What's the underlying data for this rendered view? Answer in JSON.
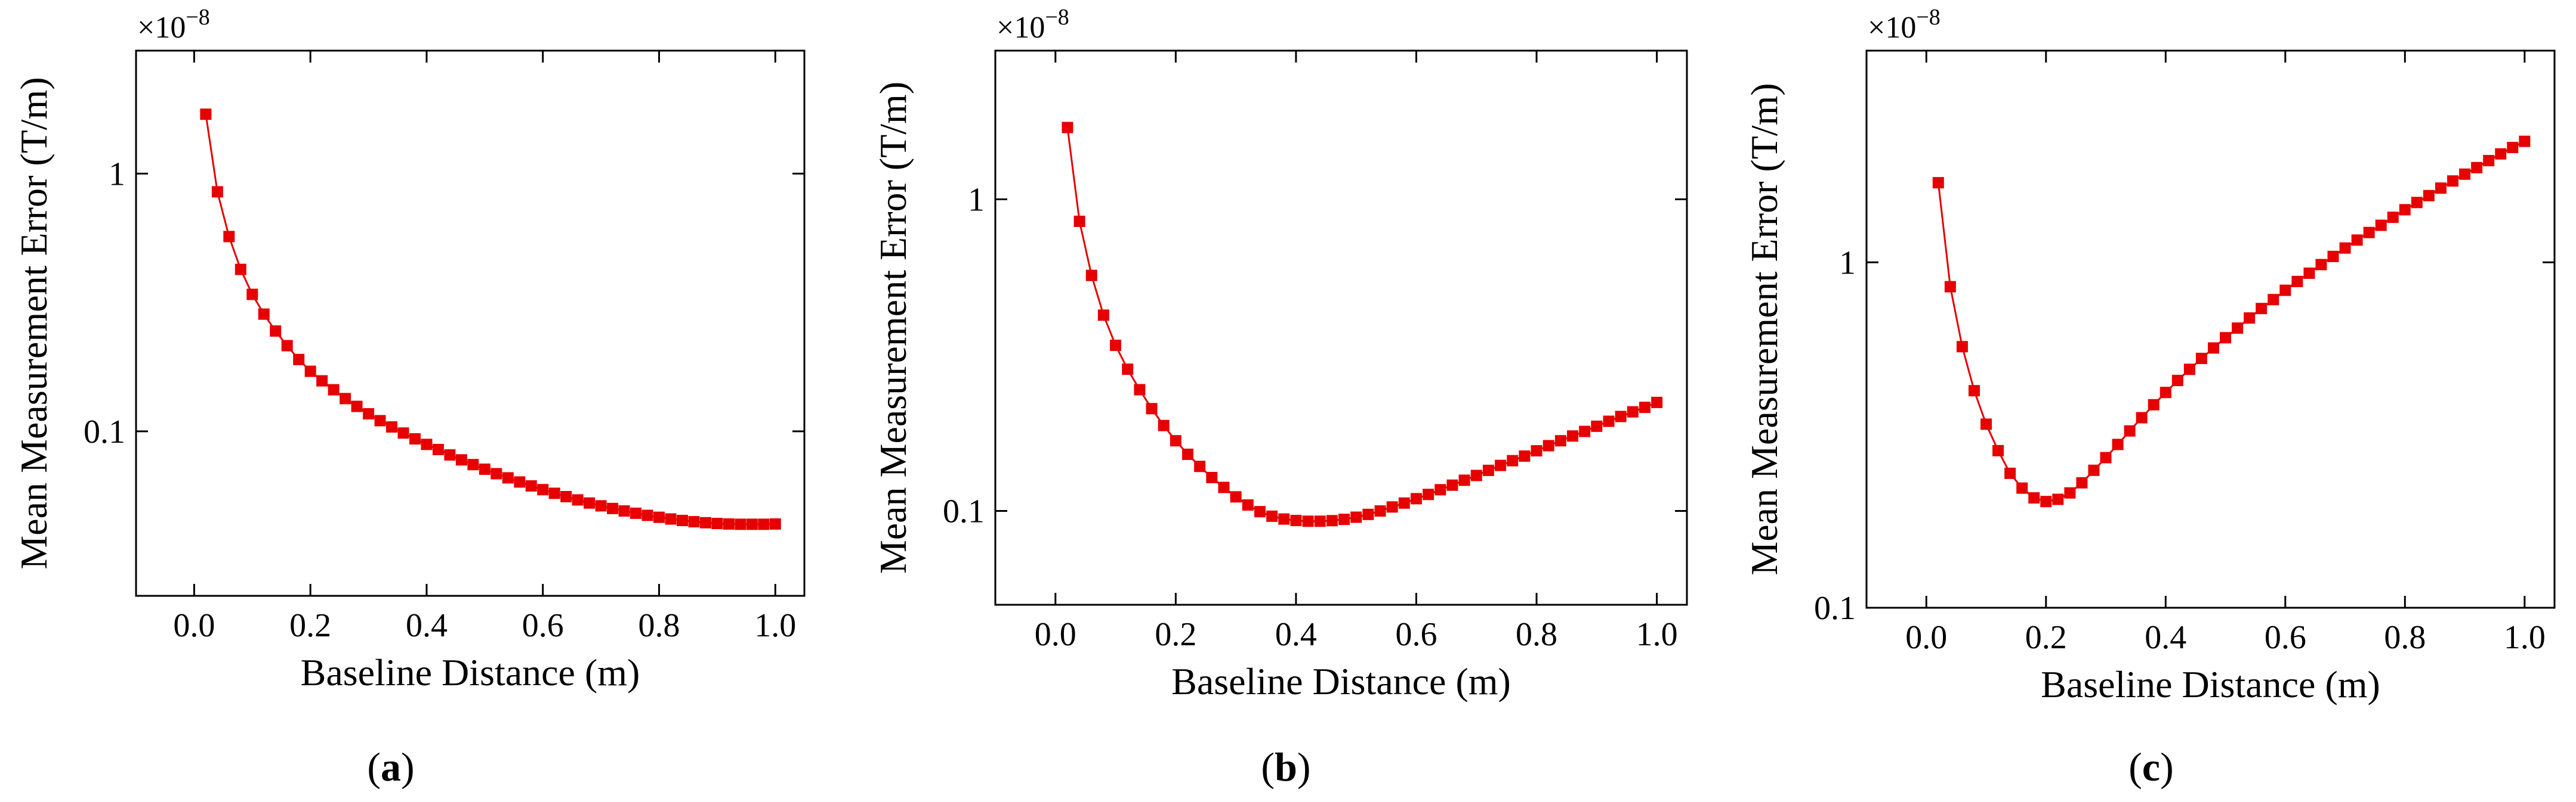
{
  "chart_data": [
    {
      "panel_label": "(a)",
      "type": "line",
      "xlabel": "Baseline Distance (m)",
      "ylabel": "Mean Measurement Error (T/m)",
      "y_multiplier": "×10",
      "y_multiplier_exp": "−8",
      "xlim": [
        -0.1,
        1.05
      ],
      "ylim": [
        0.023,
        3.0
      ],
      "yscale": "log",
      "xticks": [
        0.0,
        0.2,
        0.4,
        0.6,
        0.8,
        1.0
      ],
      "xtick_labels": [
        "0.0",
        "0.2",
        "0.4",
        "0.6",
        "0.8",
        "1.0"
      ],
      "yticks": [
        0.1,
        1
      ],
      "ytick_labels": [
        "0.1",
        "1"
      ],
      "marker": "square",
      "color": "#e60000",
      "grid": false,
      "x": [
        0.02,
        0.04,
        0.06,
        0.08,
        0.1,
        0.12,
        0.14,
        0.16,
        0.18,
        0.2,
        0.22,
        0.24,
        0.26,
        0.28,
        0.3,
        0.32,
        0.34,
        0.36,
        0.38,
        0.4,
        0.42,
        0.44,
        0.46,
        0.48,
        0.5,
        0.52,
        0.54,
        0.56,
        0.58,
        0.6,
        0.62,
        0.64,
        0.66,
        0.68,
        0.7,
        0.72,
        0.74,
        0.76,
        0.78,
        0.8,
        0.82,
        0.84,
        0.86,
        0.88,
        0.9,
        0.92,
        0.94,
        0.96,
        0.98,
        1.0
      ],
      "y": [
        1.7,
        0.85,
        0.57,
        0.425,
        0.34,
        0.285,
        0.245,
        0.215,
        0.19,
        0.171,
        0.157,
        0.145,
        0.134,
        0.125,
        0.117,
        0.11,
        0.104,
        0.0985,
        0.0935,
        0.089,
        0.085,
        0.081,
        0.0775,
        0.0743,
        0.0713,
        0.0685,
        0.066,
        0.0636,
        0.0614,
        0.0594,
        0.0575,
        0.0558,
        0.0542,
        0.0527,
        0.0514,
        0.0502,
        0.0491,
        0.0481,
        0.0472,
        0.0464,
        0.0457,
        0.0451,
        0.0446,
        0.0442,
        0.0439,
        0.0437,
        0.0436,
        0.0436,
        0.0436,
        0.0437
      ]
    },
    {
      "panel_label": "(b)",
      "type": "line",
      "xlabel": "Baseline Distance (m)",
      "ylabel": "Mean Measurement Error (T/m)",
      "y_multiplier": "×10",
      "y_multiplier_exp": "−8",
      "xlim": [
        -0.1,
        1.05
      ],
      "ylim": [
        0.05,
        3.0
      ],
      "yscale": "log",
      "xticks": [
        0.0,
        0.2,
        0.4,
        0.6,
        0.8,
        1.0
      ],
      "xtick_labels": [
        "0.0",
        "0.2",
        "0.4",
        "0.6",
        "0.8",
        "1.0"
      ],
      "yticks": [
        0.1,
        1
      ],
      "ytick_labels": [
        "0.1",
        "1"
      ],
      "marker": "square",
      "color": "#e60000",
      "grid": false,
      "x": [
        0.02,
        0.04,
        0.06,
        0.08,
        0.1,
        0.12,
        0.14,
        0.16,
        0.18,
        0.2,
        0.22,
        0.24,
        0.26,
        0.28,
        0.3,
        0.32,
        0.34,
        0.36,
        0.38,
        0.4,
        0.42,
        0.44,
        0.46,
        0.48,
        0.5,
        0.52,
        0.54,
        0.56,
        0.58,
        0.6,
        0.62,
        0.64,
        0.66,
        0.68,
        0.7,
        0.72,
        0.74,
        0.76,
        0.78,
        0.8,
        0.82,
        0.84,
        0.86,
        0.88,
        0.9,
        0.92,
        0.94,
        0.96,
        0.98,
        1.0
      ],
      "y": [
        1.7,
        0.85,
        0.57,
        0.425,
        0.34,
        0.285,
        0.245,
        0.213,
        0.188,
        0.168,
        0.152,
        0.139,
        0.128,
        0.119,
        0.111,
        0.1045,
        0.0995,
        0.0962,
        0.0942,
        0.0932,
        0.0927,
        0.0927,
        0.0931,
        0.094,
        0.0955,
        0.0975,
        0.1,
        0.103,
        0.106,
        0.1095,
        0.113,
        0.117,
        0.121,
        0.1255,
        0.13,
        0.135,
        0.14,
        0.145,
        0.15,
        0.156,
        0.162,
        0.168,
        0.174,
        0.18,
        0.187,
        0.194,
        0.201,
        0.208,
        0.215,
        0.223
      ]
    },
    {
      "panel_label": "(c)",
      "type": "line",
      "xlabel": "Baseline Distance (m)",
      "ylabel": "Mean Measurement Error (T/m)",
      "y_multiplier": "×10",
      "y_multiplier_exp": "−8",
      "xlim": [
        -0.1,
        1.05
      ],
      "ylim": [
        0.1,
        4.1
      ],
      "yscale": "log",
      "xticks": [
        0.0,
        0.2,
        0.4,
        0.6,
        0.8,
        1.0
      ],
      "xtick_labels": [
        "0.0",
        "0.2",
        "0.4",
        "0.6",
        "0.8",
        "1.0"
      ],
      "yticks": [
        0.1,
        1
      ],
      "ytick_labels": [
        "0.1",
        "1"
      ],
      "marker": "square",
      "color": "#e60000",
      "grid": false,
      "x": [
        0.02,
        0.04,
        0.06,
        0.08,
        0.1,
        0.12,
        0.14,
        0.16,
        0.18,
        0.2,
        0.22,
        0.24,
        0.26,
        0.28,
        0.3,
        0.32,
        0.34,
        0.36,
        0.38,
        0.4,
        0.42,
        0.44,
        0.46,
        0.48,
        0.5,
        0.52,
        0.54,
        0.56,
        0.58,
        0.6,
        0.62,
        0.64,
        0.66,
        0.68,
        0.7,
        0.72,
        0.74,
        0.76,
        0.78,
        0.8,
        0.82,
        0.84,
        0.86,
        0.88,
        0.9,
        0.92,
        0.94,
        0.96,
        0.98,
        1.0
      ],
      "y": [
        1.7,
        0.85,
        0.57,
        0.425,
        0.34,
        0.285,
        0.245,
        0.222,
        0.208,
        0.203,
        0.206,
        0.215,
        0.23,
        0.25,
        0.272,
        0.297,
        0.325,
        0.355,
        0.387,
        0.42,
        0.455,
        0.49,
        0.527,
        0.565,
        0.605,
        0.645,
        0.69,
        0.735,
        0.78,
        0.83,
        0.88,
        0.93,
        0.985,
        1.04,
        1.1,
        1.16,
        1.22,
        1.28,
        1.35,
        1.42,
        1.49,
        1.56,
        1.64,
        1.72,
        1.8,
        1.88,
        1.97,
        2.06,
        2.15,
        2.24
      ]
    }
  ]
}
